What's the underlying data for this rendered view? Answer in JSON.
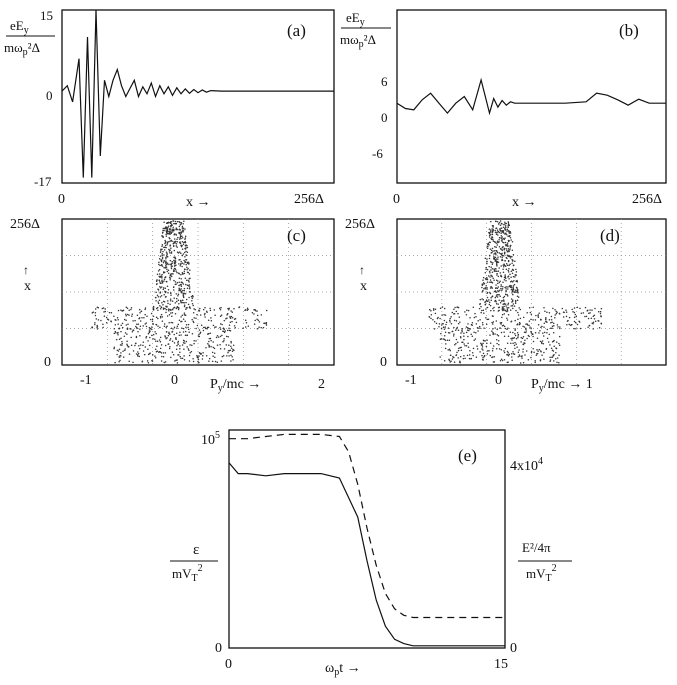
{
  "panel_a": {
    "label": "(a)",
    "ylabel_top": "eE",
    "ylabel_top_sub": "y",
    "ylabel_bottom": "mω",
    "ylabel_bottom_sub": "p",
    "ylabel_bottom_tail": "²Δ",
    "yticks": [
      "15",
      "0",
      "-17"
    ],
    "xticks": [
      "0",
      "256Δ"
    ],
    "xlabel": "x →"
  },
  "panel_b": {
    "label": "(b)",
    "ylabel_top": "eE",
    "ylabel_top_sub": "y",
    "ylabel_bottom": "mω",
    "ylabel_bottom_sub": "p",
    "ylabel_bottom_tail": "²Δ",
    "yticks": [
      "6",
      "0",
      "-6"
    ],
    "xticks": [
      "0",
      "256Δ"
    ],
    "xlabel": "x →"
  },
  "panel_c": {
    "label": "(c)",
    "ytop": "256Δ",
    "ybottom": "0",
    "yaxis": "x",
    "xticks": [
      "-1",
      "0",
      "2"
    ],
    "xlabel": "P",
    "xlabel_sub": "y",
    "xlabel_tail": "/mc →"
  },
  "panel_d": {
    "label": "(d)",
    "ytop": "256Δ",
    "ybottom": "0",
    "yaxis": "x",
    "xticks": [
      "-1",
      "0"
    ],
    "xlabel": "P",
    "xlabel_sub": "y",
    "xlabel_tail": "/mc → 1"
  },
  "panel_e": {
    "label": "(e)",
    "left_top": "10",
    "left_top_sup": "5",
    "left_bottom": "0",
    "right_top": "4x10",
    "right_top_sup": "4",
    "right_bottom": "0",
    "xticks": [
      "0",
      "15"
    ],
    "xlabel": "ω",
    "xlabel_sub": "p",
    "xlabel_tail": "t →",
    "left_label_top": "ε",
    "left_label_bottom": "mV",
    "left_label_bottom_sub": "T",
    "left_label_bottom_sup": "2",
    "right_label_top": "E²/4π",
    "right_label_bottom": "mV",
    "right_label_bottom_sub": "T",
    "right_label_bottom_sup": "2"
  },
  "chart_data": [
    {
      "type": "line",
      "panel": "(a)",
      "xlim": [
        0,
        256
      ],
      "ylim": [
        -17,
        15
      ],
      "series": [
        {
          "x": [
            0,
            5,
            10,
            16,
            20,
            24,
            28,
            32,
            36,
            40,
            44,
            48,
            52,
            56,
            60,
            64,
            68,
            72,
            76,
            80,
            84,
            88,
            92,
            96,
            100,
            104,
            108,
            112,
            116,
            120,
            124,
            128,
            132,
            136,
            140,
            150,
            256
          ],
          "values": [
            0,
            1,
            -2,
            6,
            -16,
            10,
            -16,
            15,
            -12,
            2,
            -1,
            2,
            4,
            1,
            -1,
            0.5,
            2,
            -1,
            0.8,
            -0.5,
            1.5,
            -1,
            1,
            -0.5,
            0.8,
            -0.8,
            0.6,
            -0.5,
            0.4,
            -0.4,
            0.3,
            -0.3,
            0.2,
            -0.2,
            0.1,
            0,
            0
          ]
        }
      ]
    },
    {
      "type": "line",
      "panel": "(b)",
      "xlim": [
        0,
        256
      ],
      "ylim": [
        -12,
        14
      ],
      "series": [
        {
          "x": [
            0,
            8,
            16,
            24,
            32,
            40,
            48,
            56,
            64,
            72,
            80,
            84,
            88,
            92,
            96,
            100,
            104,
            108,
            112,
            120,
            140,
            160,
            180,
            190,
            200,
            210,
            220,
            230,
            240,
            256
          ],
          "values": [
            0,
            -0.8,
            -1,
            0.5,
            1.5,
            0,
            -1.5,
            0,
            1,
            -1,
            3.5,
            1,
            -1.5,
            0.7,
            -0.6,
            0.4,
            -0.3,
            0.2,
            0,
            0,
            0,
            0,
            0.2,
            1.5,
            1.2,
            0.5,
            -0.3,
            0.6,
            0,
            0
          ]
        }
      ]
    },
    {
      "type": "line",
      "panel": "(e)",
      "xlim": [
        0,
        15
      ],
      "series": [
        {
          "name": "ε",
          "x": [
            0,
            0.5,
            1,
            2,
            3,
            4,
            5,
            6,
            7,
            7.5,
            8,
            8.5,
            9,
            9.5,
            10,
            10.5,
            11,
            12,
            13,
            14,
            15
          ],
          "values": [
            85,
            80,
            80,
            79,
            80,
            80,
            80,
            78,
            60,
            40,
            22,
            10,
            4,
            2,
            1,
            1,
            1,
            1,
            1,
            1,
            1
          ]
        },
        {
          "name": "E²/4π",
          "x": [
            0,
            1,
            2,
            3,
            4,
            5,
            6,
            6.5,
            7,
            7.5,
            8,
            8.5,
            9,
            9.5,
            10,
            11,
            12,
            13,
            14,
            15
          ],
          "values": [
            96,
            96,
            97,
            98,
            98,
            98,
            97,
            90,
            75,
            55,
            38,
            25,
            18,
            15,
            14,
            14,
            14,
            14,
            14,
            14
          ]
        }
      ]
    }
  ]
}
